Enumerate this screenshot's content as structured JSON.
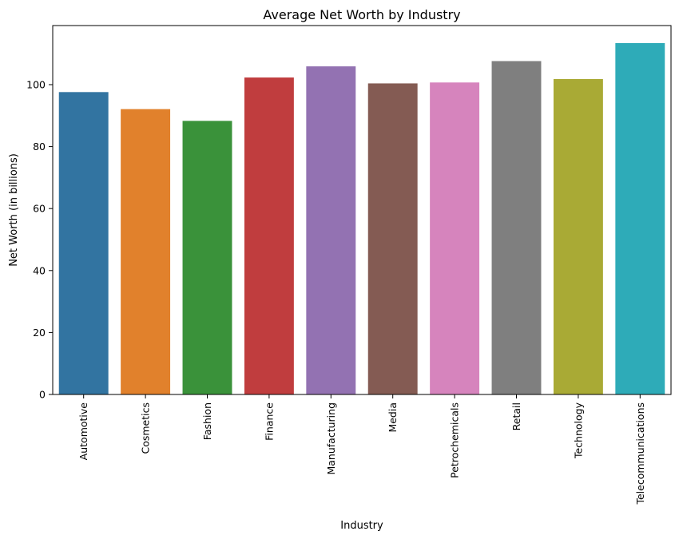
{
  "chart_data": {
    "type": "bar",
    "title": "Average Net Worth by Industry",
    "xlabel": "Industry",
    "ylabel": "Net Worth (in billions)",
    "categories": [
      "Automotive",
      "Cosmetics",
      "Fashion",
      "Finance",
      "Manufacturing",
      "Media",
      "Petrochemicals",
      "Retail",
      "Technology",
      "Telecommunications"
    ],
    "values": [
      97.6,
      92.1,
      88.3,
      102.3,
      105.9,
      100.4,
      100.7,
      107.6,
      101.8,
      113.4
    ],
    "colors": [
      "#3274a1",
      "#e1812c",
      "#3a923a",
      "#c03d3e",
      "#9372b2",
      "#845b53",
      "#d684bd",
      "#7f7f7f",
      "#a9aa35",
      "#2eabb8"
    ],
    "ylim": [
      0,
      119.07
    ],
    "yticks": [
      0,
      20,
      40,
      60,
      80,
      100
    ],
    "grid": false,
    "legend": "none"
  }
}
